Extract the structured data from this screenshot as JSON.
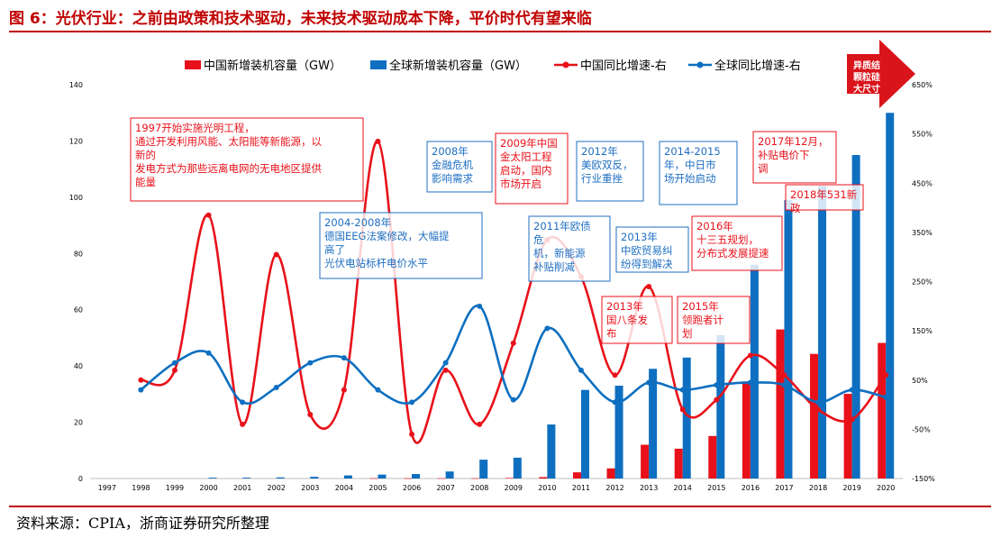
{
  "title": "图 6：光伏行业：之前由政策和技术驱动，未来技术驱动成本下降，平价时代有望来临",
  "source": "资料来源：CPIA，浙商证券研究所整理",
  "colors": {
    "china": "#e8111a",
    "global": "#0e6fc0",
    "title": "#c00000"
  },
  "chart_data": {
    "type": "bar",
    "categories": [
      "1997",
      "1998",
      "1999",
      "2000",
      "2001",
      "2002",
      "2003",
      "2004",
      "2005",
      "2006",
      "2007",
      "2008",
      "2009",
      "2010",
      "2011",
      "2012",
      "2013",
      "2014",
      "2015",
      "2016",
      "2017",
      "2018",
      "2019",
      "2020"
    ],
    "y_left": {
      "ylim": [
        0,
        140
      ],
      "ticks": [
        "0",
        "20",
        "40",
        "60",
        "80",
        "100",
        "120",
        "140"
      ]
    },
    "y_right": {
      "ylim": [
        -150,
        650
      ],
      "ticks": [
        "-150%",
        "-50%",
        "50%",
        "150%",
        "250%",
        "350%",
        "450%",
        "550%",
        "650%"
      ]
    },
    "series": [
      {
        "name": "中国新增装机容量（GW）",
        "kind": "bar",
        "axis": "left",
        "color": "#e8111a",
        "values": [
          0,
          0,
          0,
          0,
          0,
          0,
          0,
          0,
          0.1,
          0.1,
          0.1,
          0.1,
          0.2,
          0.5,
          2.2,
          3.6,
          12,
          10.6,
          15.1,
          34.5,
          53,
          44.3,
          30.1,
          48.2
        ]
      },
      {
        "name": "全球新增装机容量（GW）",
        "kind": "bar",
        "axis": "left",
        "color": "#0e6fc0",
        "values": [
          0,
          0,
          0,
          0.3,
          0.3,
          0.4,
          0.6,
          1.1,
          1.4,
          1.6,
          2.5,
          6.7,
          7.4,
          19.2,
          31.5,
          33,
          39,
          43,
          51,
          76,
          99,
          104,
          115,
          130
        ]
      },
      {
        "name": "中国同比增速-右",
        "kind": "line",
        "axis": "right",
        "color": "#e8111a",
        "values": [
          null,
          50,
          70,
          385,
          -40,
          305,
          -20,
          30,
          535,
          -60,
          70,
          -40,
          125,
          335,
          260,
          60,
          240,
          -10,
          10,
          100,
          60,
          -10,
          -30,
          60
        ]
      },
      {
        "name": "全球同比增速-右",
        "kind": "line",
        "axis": "right",
        "color": "#0e6fc0",
        "values": [
          null,
          30,
          85,
          105,
          5,
          35,
          85,
          95,
          30,
          5,
          85,
          200,
          10,
          155,
          70,
          5,
          45,
          30,
          40,
          45,
          40,
          5,
          30,
          15
        ]
      }
    ]
  },
  "arrow_label": "异质结颗粒硅大尺寸",
  "annotations": [
    {
      "text": "1997开始实施光明工程，通过开发利用风能、太阳能等新能源，以新的发电方式为那些远离电网的无电地区提供能量",
      "color": "red"
    },
    {
      "text": "2004-2008年德国EEG法案修改，大幅提高了光伏电站标杆电价水平",
      "color": "blue"
    },
    {
      "text": "2008年金融危机影响需求",
      "color": "blue"
    },
    {
      "text": "2009年中国金太阳工程启动，国内市场开启",
      "color": "red"
    },
    {
      "text": "2012年美欧双反，行业重挫",
      "color": "blue"
    },
    {
      "text": "2014-2015年，中日市场开始启动",
      "color": "blue"
    },
    {
      "text": "2017年12月，补贴电价下调",
      "color": "red"
    },
    {
      "text": "2018年531新政",
      "color": "red"
    },
    {
      "text": "2011年欧债危机，新能源补贴削减",
      "color": "blue"
    },
    {
      "text": "2013年中欧贸易纠纷得到解决",
      "color": "blue"
    },
    {
      "text": "2016年十三五规划，分布式发展提速",
      "color": "red"
    },
    {
      "text": "2013年国八条发布",
      "color": "red"
    },
    {
      "text": "2015年领跑者计划",
      "color": "red"
    }
  ]
}
